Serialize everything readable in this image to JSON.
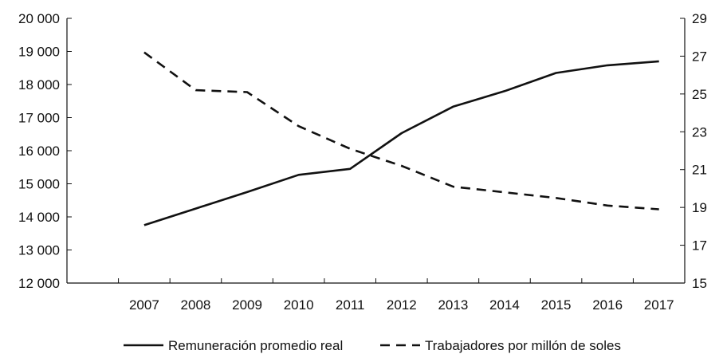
{
  "chart_data": {
    "type": "line",
    "title": "",
    "xlabel": "",
    "ylabel": "",
    "categories": [
      "2007",
      "2008",
      "2009",
      "2010",
      "2011",
      "2012",
      "2013",
      "2014",
      "2015",
      "2016",
      "2017"
    ],
    "y_left": {
      "lim": [
        12000,
        20000
      ],
      "ticks": [
        12000,
        13000,
        14000,
        15000,
        16000,
        17000,
        18000,
        19000,
        20000
      ],
      "tick_labels": [
        "12 000",
        "13 000",
        "14 000",
        "15 000",
        "16 000",
        "17 000",
        "18 000",
        "19 000",
        "20 000"
      ]
    },
    "y_right": {
      "lim": [
        15,
        29
      ],
      "ticks": [
        15,
        17,
        19,
        21,
        23,
        25,
        27,
        29
      ],
      "tick_labels": [
        "15",
        "17",
        "19",
        "21",
        "23",
        "25",
        "27",
        "29"
      ]
    },
    "series": [
      {
        "name": "Remuneración promedio real",
        "axis": "left",
        "style": "solid",
        "values": [
          13750,
          14250,
          14750,
          15270,
          15450,
          16530,
          17330,
          17800,
          18350,
          18580,
          18700
        ]
      },
      {
        "name": "Trabajadores por millón de soles",
        "axis": "right",
        "style": "dashed",
        "values": [
          27.2,
          25.2,
          25.1,
          23.3,
          22.1,
          21.2,
          20.1,
          19.8,
          19.5,
          19.1,
          18.9
        ]
      }
    ],
    "grid": false,
    "legend_position": "bottom"
  },
  "colors": {
    "line": "#111111",
    "background": "#ffffff"
  }
}
